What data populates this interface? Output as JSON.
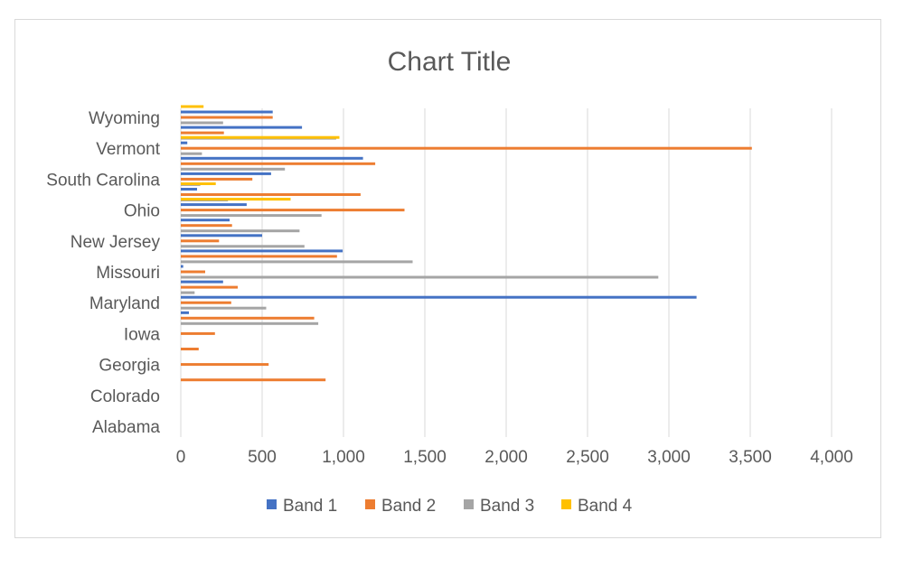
{
  "chart_data": {
    "type": "bar",
    "orientation": "horizontal",
    "title": "Chart Title",
    "xlim": [
      0,
      4000
    ],
    "x_ticks": [
      "0",
      "500",
      "1,000",
      "1,500",
      "2,000",
      "2,500",
      "3,000",
      "3,500",
      "4,000"
    ],
    "x_tick_values": [
      0,
      500,
      1000,
      1500,
      2000,
      2500,
      3000,
      3500,
      4000
    ],
    "grid": "vertical",
    "legend_position": "bottom",
    "category_labels": [
      "Wyoming",
      "Vermont",
      "South Carolina",
      "Ohio",
      "New Jersey",
      "Missouri",
      "Maryland",
      "Iowa",
      "Georgia",
      "Colorado",
      "Alabama"
    ],
    "categories": [
      "Wyoming",
      "",
      "Vermont",
      "",
      "South Carolina",
      "",
      "Ohio",
      "",
      "New Jersey",
      "",
      "Missouri",
      "",
      "Maryland",
      "",
      "Iowa",
      "",
      "Georgia",
      "",
      "Colorado",
      "",
      "Alabama"
    ],
    "series": [
      {
        "name": "Band 1",
        "color": "#4472c4",
        "values": [
          565,
          745,
          40,
          1120,
          555,
          100,
          405,
          300,
          500,
          995,
          15,
          260,
          3170,
          50,
          0,
          0,
          0,
          0,
          0,
          0,
          0
        ]
      },
      {
        "name": "Band 2",
        "color": "#ed7d31",
        "values": [
          565,
          265,
          3510,
          1195,
          440,
          1105,
          1375,
          315,
          235,
          960,
          150,
          350,
          310,
          820,
          210,
          110,
          540,
          890,
          0,
          0,
          0
        ]
      },
      {
        "name": "Band 3",
        "color": "#a5a5a5",
        "values": [
          260,
          955,
          130,
          640,
          120,
          290,
          865,
          730,
          760,
          1425,
          2935,
          85,
          525,
          845,
          0,
          0,
          0,
          0,
          0,
          0,
          0
        ]
      },
      {
        "name": "Band 4",
        "color": "#ffc000",
        "values": [
          140,
          0,
          975,
          0,
          0,
          215,
          675,
          0,
          0,
          0,
          0,
          0,
          0,
          0,
          0,
          0,
          0,
          0,
          0,
          0,
          0
        ]
      }
    ]
  }
}
